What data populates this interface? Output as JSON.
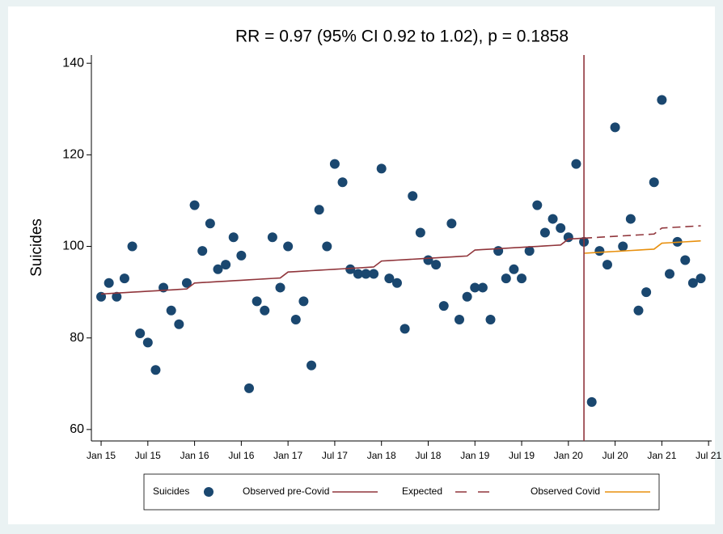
{
  "chart_data": {
    "type": "scatter",
    "title": "RR = 0.97 (95% CI 0.92 to 1.02), p = 0.1858",
    "y_label": "Suicides",
    "x": [
      0,
      1,
      2,
      3,
      4,
      5,
      6,
      7,
      8,
      9,
      10,
      11,
      12,
      13,
      14,
      15,
      16,
      17,
      18,
      19,
      20,
      21,
      22,
      23,
      24,
      25,
      26,
      27,
      28,
      29,
      30,
      31,
      32,
      33,
      34,
      35,
      36,
      37,
      38,
      39,
      40,
      41,
      42,
      43,
      44,
      45,
      46,
      47,
      48,
      49,
      50,
      51,
      52,
      53,
      54,
      55,
      56,
      57,
      58,
      59,
      60,
      61,
      62,
      63,
      64,
      65,
      66,
      67,
      68,
      69,
      70,
      71,
      72,
      73,
      74,
      75,
      76,
      77
    ],
    "series": [
      {
        "name": "Suicides",
        "kind": "markers",
        "color": "#1a476f",
        "values": [
          89,
          92,
          89,
          93,
          100,
          81,
          79,
          73,
          91,
          86,
          83,
          92,
          109,
          99,
          105,
          95,
          96,
          102,
          98,
          69,
          88,
          86,
          102,
          91,
          100,
          84,
          88,
          74,
          108,
          100,
          118,
          114,
          95,
          94,
          94,
          94,
          117,
          93,
          92,
          82,
          111,
          103,
          97,
          96,
          87,
          105,
          84,
          89,
          91,
          91,
          84,
          99,
          93,
          95,
          93,
          99,
          109,
          103,
          106,
          104,
          102,
          118,
          101,
          66,
          99,
          96,
          126,
          100,
          106,
          86,
          90,
          114,
          132,
          94,
          101,
          97,
          92,
          93
        ]
      },
      {
        "name": "Observed pre-Covid",
        "kind": "line",
        "color": "#90353b",
        "dash": false,
        "values": [
          89.6,
          89.7,
          89.8,
          89.9,
          90.0,
          90.1,
          90.2,
          90.3,
          90.4,
          90.5,
          90.6,
          90.7,
          92.0,
          92.1,
          92.2,
          92.3,
          92.4,
          92.5,
          92.6,
          92.7,
          92.8,
          92.9,
          93.0,
          93.1,
          94.4,
          94.5,
          94.6,
          94.7,
          94.8,
          94.9,
          95.0,
          95.1,
          95.2,
          95.3,
          95.4,
          95.5,
          96.8,
          96.9,
          97.0,
          97.1,
          97.2,
          97.3,
          97.4,
          97.5,
          97.6,
          97.7,
          97.8,
          97.9,
          99.2,
          99.3,
          99.4,
          99.5,
          99.6,
          99.7,
          99.8,
          99.9,
          100.0,
          100.1,
          100.2,
          100.3,
          101.6,
          101.7,
          101.8,
          null,
          null,
          null,
          null,
          null,
          null,
          null,
          null,
          null,
          null,
          null,
          null,
          null,
          null,
          null
        ]
      },
      {
        "name": "Expected",
        "kind": "line",
        "color": "#90353b",
        "dash": true,
        "values": [
          null,
          null,
          null,
          null,
          null,
          null,
          null,
          null,
          null,
          null,
          null,
          null,
          null,
          null,
          null,
          null,
          null,
          null,
          null,
          null,
          null,
          null,
          null,
          null,
          null,
          null,
          null,
          null,
          null,
          null,
          null,
          null,
          null,
          null,
          null,
          null,
          null,
          null,
          null,
          null,
          null,
          null,
          null,
          null,
          null,
          null,
          null,
          null,
          null,
          null,
          null,
          null,
          null,
          null,
          null,
          null,
          null,
          null,
          null,
          null,
          null,
          null,
          101.8,
          101.9,
          102.0,
          102.1,
          102.2,
          102.3,
          102.4,
          102.5,
          102.6,
          102.7,
          104.0,
          104.1,
          104.2,
          104.3,
          104.4,
          104.5
        ]
      },
      {
        "name": "Observed Covid",
        "kind": "line",
        "color": "#e8900e",
        "dash": false,
        "values": [
          null,
          null,
          null,
          null,
          null,
          null,
          null,
          null,
          null,
          null,
          null,
          null,
          null,
          null,
          null,
          null,
          null,
          null,
          null,
          null,
          null,
          null,
          null,
          null,
          null,
          null,
          null,
          null,
          null,
          null,
          null,
          null,
          null,
          null,
          null,
          null,
          null,
          null,
          null,
          null,
          null,
          null,
          null,
          null,
          null,
          null,
          null,
          null,
          null,
          null,
          null,
          null,
          null,
          null,
          null,
          null,
          null,
          null,
          null,
          null,
          null,
          null,
          98.5,
          98.6,
          98.7,
          98.8,
          98.9,
          99.0,
          99.1,
          99.2,
          99.3,
          99.4,
          100.7,
          100.8,
          100.9,
          101.0,
          101.1,
          101.2
        ]
      }
    ],
    "vline": 62,
    "vline_color": "#90353b",
    "xlim": [
      -1.25,
      78.4
    ],
    "ylim": [
      57.5,
      141.8
    ],
    "yticks": [
      60,
      80,
      100,
      120,
      140
    ],
    "xticks": [
      {
        "value": 0,
        "label": "Jan 15"
      },
      {
        "value": 6,
        "label": "Jul 15"
      },
      {
        "value": 12,
        "label": "Jan 16"
      },
      {
        "value": 18,
        "label": "Jul 16"
      },
      {
        "value": 24,
        "label": "Jan 17"
      },
      {
        "value": 30,
        "label": "Jul 17"
      },
      {
        "value": 36,
        "label": "Jan 18"
      },
      {
        "value": 42,
        "label": "Jul 18"
      },
      {
        "value": 48,
        "label": "Jan 19"
      },
      {
        "value": 54,
        "label": "Jul 19"
      },
      {
        "value": 60,
        "label": "Jan 20"
      },
      {
        "value": 66,
        "label": "Jul 20"
      },
      {
        "value": 72,
        "label": "Jan 21"
      },
      {
        "value": 78,
        "label": "Jul 21"
      }
    ]
  }
}
